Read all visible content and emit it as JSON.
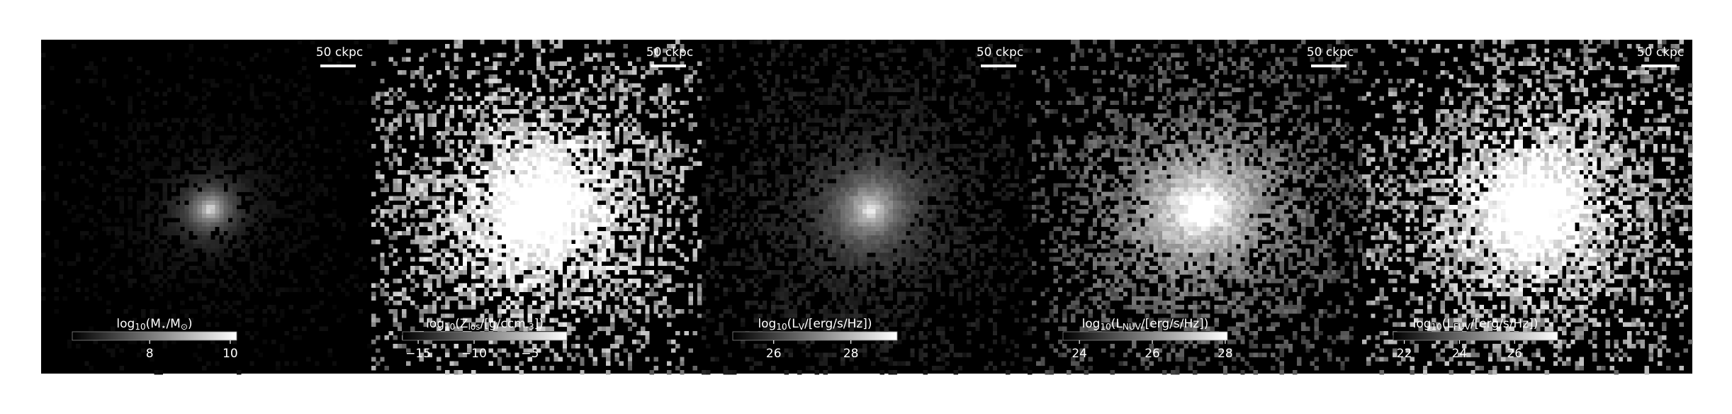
{
  "panels": [
    {
      "scale_label": "50 ckpc",
      "colorbar": {
        "label": [
          "log",
          "10",
          "(M",
          "⋆",
          "/M",
          "⊙",
          ")"
        ],
        "clim": [
          6.08,
          10.16
        ],
        "ticks": [
          8,
          10
        ]
      }
    },
    {
      "scale_label": "50 ckpc",
      "colorbar": {
        "label": [
          "log",
          "10",
          "(Z",
          "los",
          "/[g/ccm",
          "-3",
          "])"
        ],
        "clim": [
          -16.4,
          -1.7
        ],
        "ticks": [
          {
            "value": -15,
            "label": "−15"
          },
          {
            "value": -10,
            "label": "−10"
          },
          {
            "value": -5,
            "label": "−5"
          }
        ]
      }
    },
    {
      "scale_label": "50 ckpc",
      "colorbar": {
        "label": [
          "log",
          "10",
          "(L",
          "V",
          "/[erg/s/Hz])"
        ],
        "clim": [
          24.94,
          29.2
        ],
        "ticks": [
          26,
          28
        ]
      }
    },
    {
      "scale_label": "50 ckpc",
      "colorbar": {
        "label": [
          "log",
          "10",
          "(L",
          "NUV",
          "/[erg/s/Hz])"
        ],
        "clim": [
          23.55,
          28.06
        ],
        "ticks": [
          24,
          26,
          28
        ]
      }
    },
    {
      "scale_label": "50 ckpc",
      "colorbar": {
        "label": [
          "log",
          "10",
          "(L",
          "FUV",
          "/[erg/s/Hz])"
        ],
        "clim": [
          21.6,
          27.56
        ],
        "ticks": [
          22,
          24,
          26
        ]
      }
    }
  ]
}
